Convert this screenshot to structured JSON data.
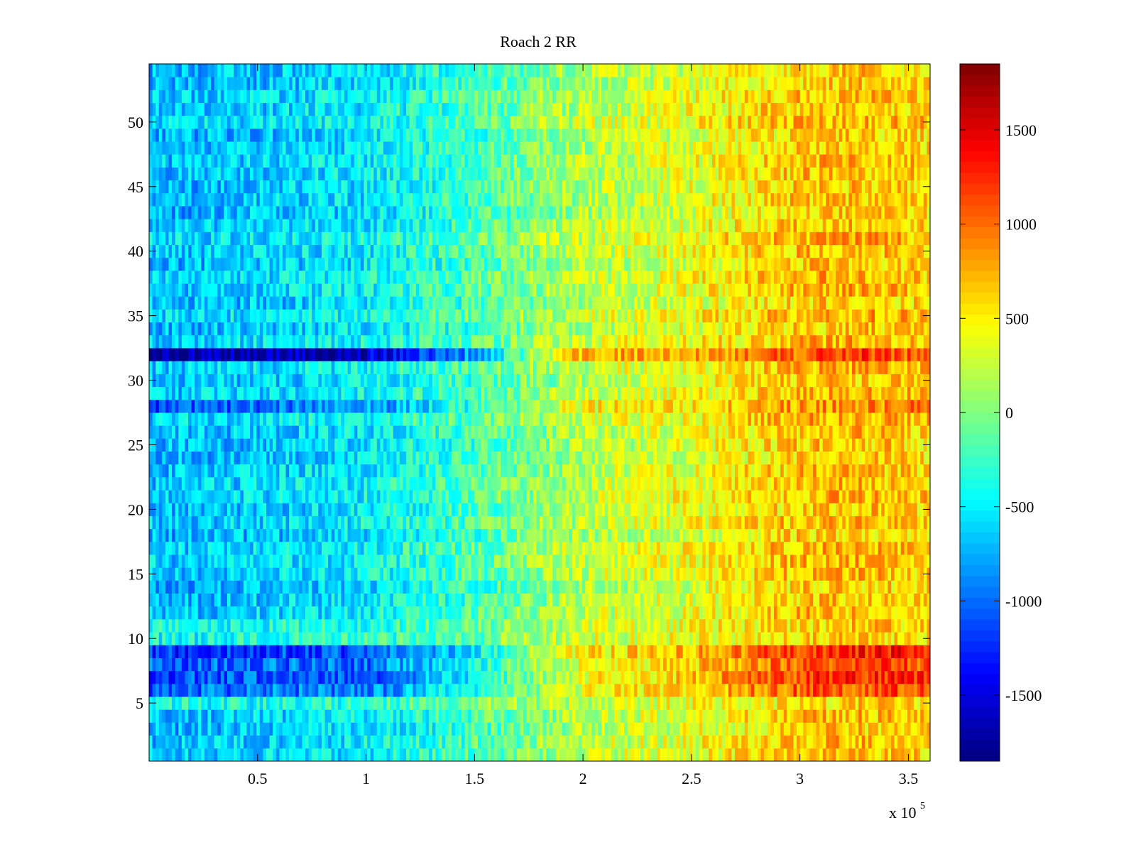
{
  "chart_data": {
    "type": "heatmap",
    "title": "Roach 2 RR",
    "xlabel": "",
    "ylabel": "",
    "x_multiplier_label": {
      "base": "x 10",
      "exponent": "5"
    },
    "xlim": [
      0,
      3.6
    ],
    "ylim": [
      0.5,
      54.5
    ],
    "x_ticks": [
      0.5,
      1,
      1.5,
      2,
      2.5,
      3,
      3.5
    ],
    "x_tick_labels": [
      "0.5",
      "1",
      "1.5",
      "2",
      "2.5",
      "3",
      "3.5"
    ],
    "y_ticks": [
      5,
      10,
      15,
      20,
      25,
      30,
      35,
      40,
      45,
      50
    ],
    "y_tick_labels": [
      "5",
      "10",
      "15",
      "20",
      "25",
      "30",
      "35",
      "40",
      "45",
      "50"
    ],
    "rows": 54,
    "colormap": "jet",
    "color_limits": [
      -1850,
      1850
    ],
    "colorbar_ticks": [
      1500,
      1000,
      500,
      0,
      -500,
      -1000,
      -1500
    ],
    "colorbar_tick_labels": [
      "1500",
      "1000",
      "500",
      "0",
      "-500",
      "-1000",
      "-1500"
    ],
    "grid": false,
    "trend": {
      "x_knots": [
        0,
        0.5,
        1,
        1.5,
        2,
        2.5,
        3,
        3.3,
        3.6
      ],
      "values": [
        -700,
        -620,
        -500,
        -200,
        200,
        380,
        680,
        700,
        600
      ]
    },
    "special_rows": [
      {
        "y": 32,
        "values": [
          -1750,
          -1700,
          -1600,
          -800,
          750,
          800,
          1050,
          1150,
          1050
        ]
      },
      {
        "y": 28,
        "values": [
          -1150,
          -1000,
          -850,
          -300,
          450,
          550,
          850,
          900,
          900
        ]
      },
      {
        "y": 9,
        "values": [
          -1250,
          -1150,
          -1100,
          -500,
          500,
          700,
          1200,
          1300,
          1250
        ]
      },
      {
        "y": 8,
        "values": [
          -1050,
          -1000,
          -1000,
          -400,
          400,
          600,
          1100,
          1150,
          1100
        ]
      },
      {
        "y": 7,
        "values": [
          -1150,
          -1050,
          -1050,
          -450,
          450,
          650,
          1150,
          1250,
          1200
        ]
      },
      {
        "y": 6,
        "values": [
          -1050,
          -950,
          -950,
          -400,
          400,
          600,
          1050,
          1100,
          1100
        ]
      },
      {
        "y": 11,
        "values": [
          -450,
          -400,
          -300,
          -100,
          300,
          400,
          600,
          650,
          550
        ]
      },
      {
        "y": 10,
        "values": [
          -450,
          -400,
          -300,
          -100,
          300,
          400,
          600,
          650,
          550
        ]
      },
      {
        "y": 5,
        "values": [
          -450,
          -400,
          -300,
          0,
          250,
          400,
          550,
          600,
          500
        ]
      },
      {
        "y": 33,
        "values": [
          -650,
          -550,
          -450,
          -150,
          350,
          450,
          700,
          750,
          650
        ]
      }
    ],
    "noise_amplitude": 320
  }
}
